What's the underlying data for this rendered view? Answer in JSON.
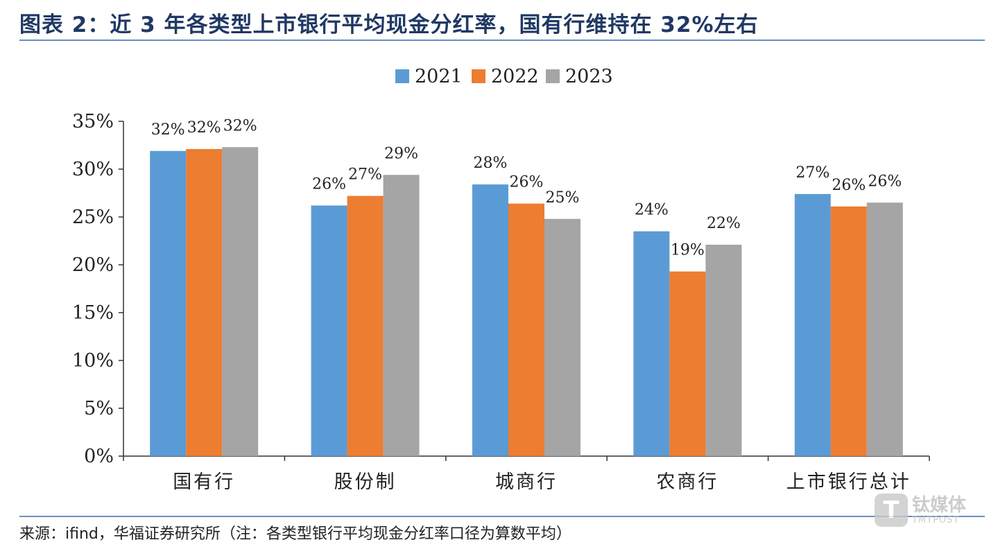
{
  "title": "图表 2：近 3 年各类型上市银行平均现金分红率，国有行维持在 32%左右",
  "source": "来源：ifind，华福证券研究所（注：各类型银行平均现金分红率口径为算数平均）",
  "watermark": {
    "logo_letter": "T",
    "name": "钛媒体",
    "sub": "TMTPOST"
  },
  "colors": {
    "2021": "#5b9bd5",
    "2022": "#ed7d31",
    "2023": "#a5a5a5",
    "title": "#1f3864",
    "rule": "#6a8fc0"
  },
  "chart_data": {
    "type": "bar",
    "title": "图表 2：近 3 年各类型上市银行平均现金分红率，国有行维持在 32%左右",
    "categories": [
      "国有行",
      "股份制",
      "城商行",
      "农商行",
      "上市银行总计"
    ],
    "series": [
      {
        "name": "2021",
        "values": [
          31.9,
          26.2,
          28.4,
          23.5,
          27.4
        ],
        "labels": [
          "32%",
          "26%",
          "28%",
          "24%",
          "27%"
        ]
      },
      {
        "name": "2022",
        "values": [
          32.1,
          27.2,
          26.4,
          19.3,
          26.1
        ],
        "labels": [
          "32%",
          "27%",
          "26%",
          "19%",
          "26%"
        ]
      },
      {
        "name": "2023",
        "values": [
          32.3,
          29.4,
          24.8,
          22.1,
          26.5
        ],
        "labels": [
          "32%",
          "29%",
          "25%",
          "22%",
          "26%"
        ]
      }
    ],
    "yticks": [
      "0%",
      "5%",
      "10%",
      "15%",
      "20%",
      "25%",
      "30%",
      "35%"
    ],
    "ylim": [
      0,
      35
    ],
    "xlabel": "",
    "ylabel": "",
    "legend": "top-center",
    "grid": false
  }
}
